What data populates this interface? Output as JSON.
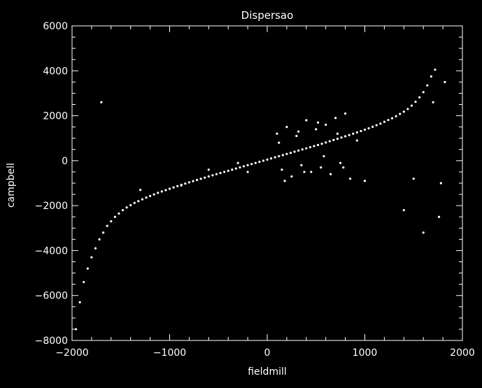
{
  "chart_data": {
    "type": "scatter",
    "title": "Dispersao",
    "xlabel": "fieldmill",
    "ylabel": "campbell",
    "xlim": [
      -2000,
      2000
    ],
    "ylim": [
      -8000,
      6000
    ],
    "x_ticks": [
      -2000,
      -1000,
      0,
      1000,
      2000
    ],
    "y_ticks": [
      -8000,
      -6000,
      -4000,
      -2000,
      0,
      2000,
      4000,
      6000
    ],
    "x_tick_labels": [
      "−2000",
      "−1000",
      "0",
      "1000",
      "2000"
    ],
    "y_tick_labels": [
      "−8000",
      "−6000",
      "−4000",
      "−2000",
      "0",
      "2000",
      "4000",
      "6000"
    ],
    "grid": false,
    "background_color": "#000000",
    "foreground_color": "#ffffff",
    "series": [
      {
        "marker": "dot",
        "color": "#ffffff",
        "x": [
          -1960,
          -1920,
          -1880,
          -1840,
          -1800,
          -1760,
          -1720,
          -1680,
          -1640,
          -1600,
          -1560,
          -1520,
          -1480,
          -1440,
          -1400,
          -1360,
          -1320,
          -1280,
          -1240,
          -1200,
          -1160,
          -1120,
          -1080,
          -1040,
          -1000,
          -960,
          -920,
          -880,
          -840,
          -800,
          -760,
          -720,
          -680,
          -640,
          -600,
          -560,
          -520,
          -480,
          -440,
          -400,
          -360,
          -320,
          -280,
          -240,
          -200,
          -160,
          -120,
          -80,
          -40,
          0,
          40,
          80,
          120,
          160,
          200,
          240,
          280,
          320,
          360,
          400,
          440,
          480,
          520,
          560,
          600,
          640,
          680,
          720,
          760,
          800,
          840,
          880,
          920,
          960,
          1000,
          1040,
          1080,
          1120,
          1160,
          1200,
          1240,
          1280,
          1320,
          1360,
          1400,
          1440,
          1480,
          1520,
          1560,
          1600,
          1640,
          1680,
          1720,
          100,
          200,
          300,
          400,
          500,
          600,
          700,
          800,
          150,
          250,
          350,
          450,
          550,
          650,
          750,
          850,
          120,
          320,
          520,
          720,
          920,
          180,
          380,
          580,
          780,
          -880,
          -600,
          -300,
          -200,
          1000,
          1500,
          1780,
          1820,
          1700,
          -1700,
          -1300,
          1400,
          1600,
          1760
        ],
        "y": [
          -7500,
          -6300,
          -5400,
          -4800,
          -4300,
          -3900,
          -3500,
          -3200,
          -2900,
          -2700,
          -2500,
          -2350,
          -2200,
          -2080,
          -1980,
          -1880,
          -1800,
          -1720,
          -1640,
          -1570,
          -1500,
          -1430,
          -1370,
          -1310,
          -1250,
          -1190,
          -1130,
          -1075,
          -1020,
          -965,
          -910,
          -860,
          -805,
          -755,
          -700,
          -650,
          -600,
          -550,
          -500,
          -450,
          -400,
          -350,
          -300,
          -250,
          -200,
          -150,
          -100,
          -50,
          0,
          50,
          100,
          150,
          200,
          250,
          300,
          350,
          400,
          450,
          500,
          550,
          600,
          650,
          700,
          755,
          810,
          865,
          920,
          975,
          1030,
          1085,
          1140,
          1200,
          1260,
          1320,
          1380,
          1440,
          1510,
          1580,
          1650,
          1730,
          1810,
          1890,
          1980,
          2080,
          2180,
          2300,
          2450,
          2620,
          2820,
          3050,
          3350,
          3750,
          4050,
          1200,
          1500,
          1100,
          1800,
          1400,
          1600,
          1900,
          2100,
          -400,
          -700,
          -200,
          -500,
          -300,
          -600,
          -100,
          -800,
          800,
          1300,
          1700,
          1200,
          900,
          -900,
          -500,
          200,
          -300,
          -1100,
          -400,
          -100,
          -500,
          -900,
          -800,
          -1000,
          3500,
          2600,
          2600,
          -1300,
          -2200,
          -3200,
          -2500
        ]
      }
    ]
  }
}
